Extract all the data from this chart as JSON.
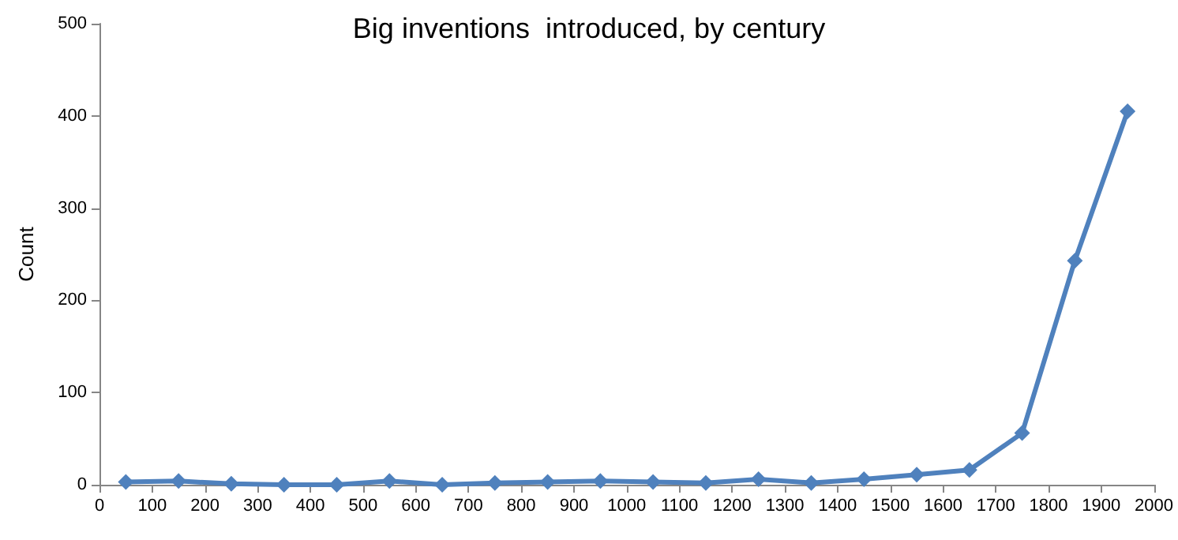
{
  "chart_data": {
    "type": "line",
    "title": "Big inventions  introduced, by century",
    "ylabel": "Count",
    "x": [
      50,
      150,
      250,
      350,
      450,
      550,
      650,
      750,
      850,
      950,
      1050,
      1150,
      1250,
      1350,
      1450,
      1550,
      1650,
      1750,
      1850,
      1950
    ],
    "series": [
      {
        "color": "#4f81bd",
        "values": [
          3,
          4,
          1,
          0,
          0,
          4,
          0,
          2,
          3,
          4,
          3,
          2,
          6,
          2,
          6,
          11,
          16,
          56,
          243,
          405
        ]
      }
    ],
    "xlim": [
      0,
      2000
    ],
    "xticks": [
      0,
      100,
      200,
      300,
      400,
      500,
      600,
      700,
      800,
      900,
      1000,
      1100,
      1200,
      1300,
      1400,
      1500,
      1600,
      1700,
      1800,
      1900,
      2000
    ],
    "ylim": [
      0,
      500
    ],
    "yticks": [
      0,
      100,
      200,
      300,
      400,
      500
    ],
    "grid": false,
    "marker": "diamond",
    "line_style": "solid"
  }
}
